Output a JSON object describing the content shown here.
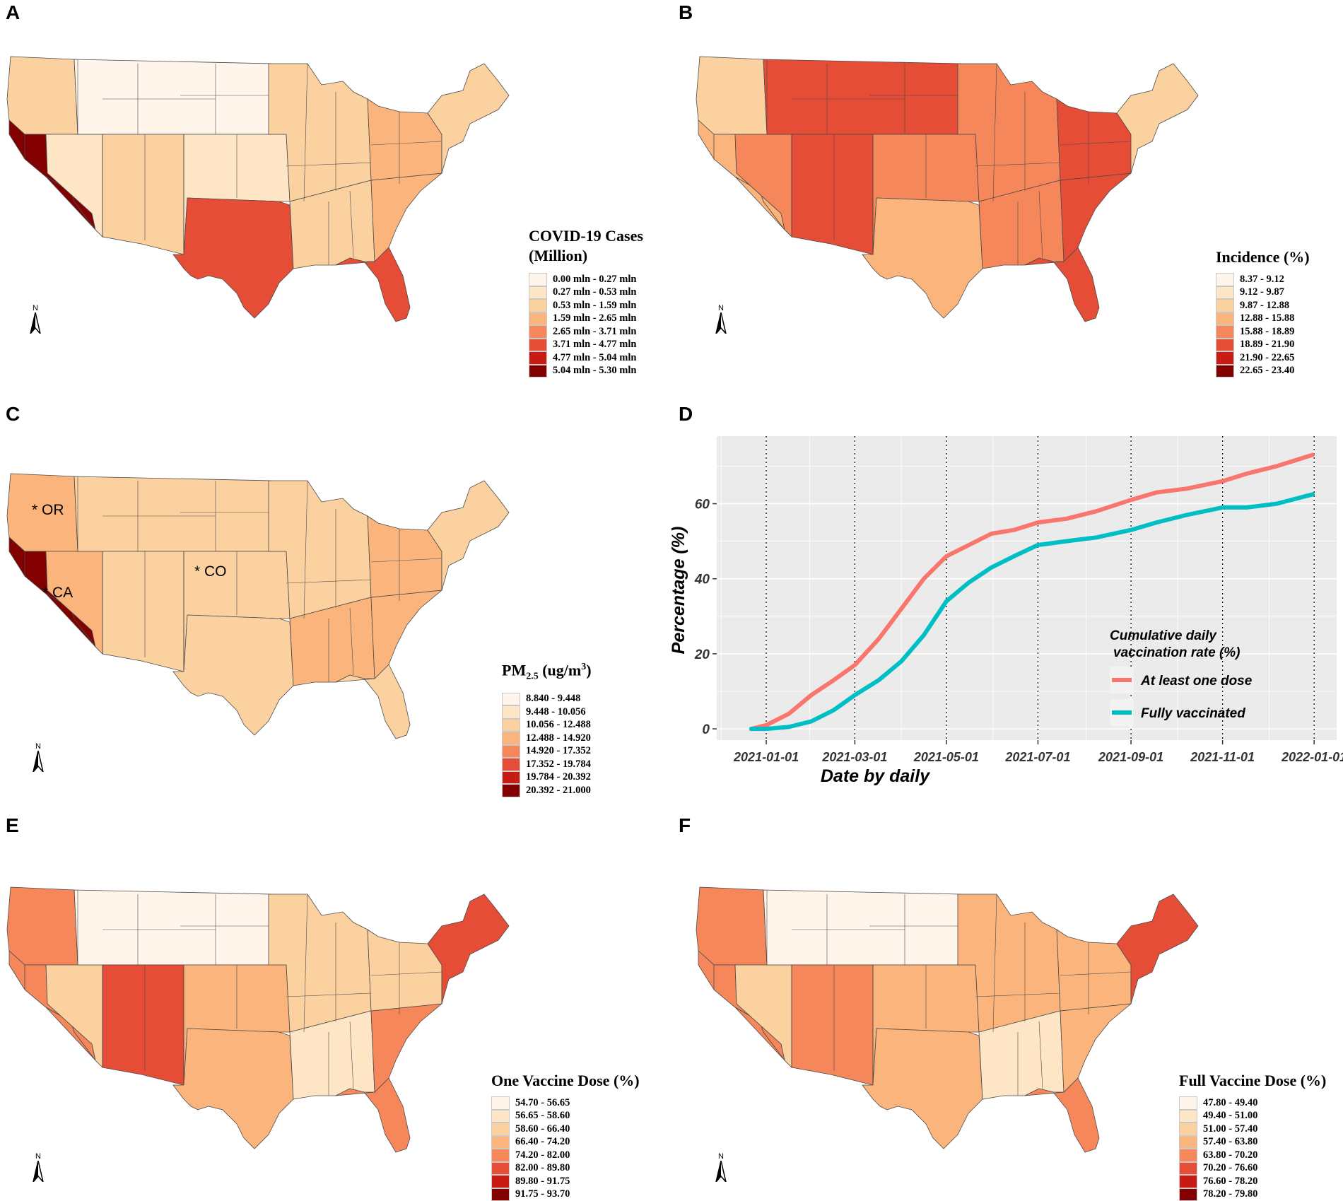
{
  "palette": [
    "#fff5eb",
    "#fde5c6",
    "#fcd1a0",
    "#fbb47b",
    "#f5875b",
    "#e54d36",
    "#c81b14",
    "#820000"
  ],
  "panels": {
    "A": {
      "label": "A",
      "legend_title_line1": "COVID-19 Cases",
      "legend_title_line2": "(Million)",
      "legend_items": [
        "0.00 mln - 0.27 mln",
        "0.27 mln - 0.53 mln",
        "0.53 mln - 1.59 mln",
        "1.59 mln - 2.65 mln",
        "2.65 mln - 3.71 mln",
        "3.71 mln - 4.77 mln",
        "4.77 mln - 5.04 mln",
        "5.04 mln - 5.30 mln"
      ],
      "north_label": "N"
    },
    "B": {
      "label": "B",
      "legend_title": "Incidence (%)",
      "legend_items": [
        "8.37 - 9.12",
        "9.12 - 9.87",
        "9.87 - 12.88",
        "12.88 - 15.88",
        "15.88 - 18.89",
        "18.89 - 21.90",
        "21.90 - 22.65",
        "22.65 - 23.40"
      ],
      "north_label": "N"
    },
    "C": {
      "label": "C",
      "legend_title_main": "PM",
      "legend_title_sub": "2.5",
      "legend_title_unit": " (ug/m",
      "legend_title_sup": "3",
      "legend_title_close": ")",
      "legend_items": [
        "8.840 - 9.448",
        "9.448 - 10.056",
        "10.056 - 12.488",
        "12.488 - 14.920",
        "14.920 - 17.352",
        "17.352 - 19.784",
        "19.784 - 20.392",
        "20.392 - 21.000"
      ],
      "annotations": {
        "or": "* OR",
        "co": "* CO",
        "ca": "* CA"
      },
      "north_label": "N"
    },
    "E": {
      "label": "E",
      "legend_title": "One Vaccine Dose (%)",
      "legend_items": [
        "54.70 - 56.65",
        "56.65 - 58.60",
        "58.60 - 66.40",
        "66.40 - 74.20",
        "74.20 - 82.00",
        "82.00 - 89.80",
        "89.80 - 91.75",
        "91.75 - 93.70"
      ],
      "north_label": "N"
    },
    "F": {
      "label": "F",
      "legend_title": "Full Vaccine Dose (%)",
      "legend_items": [
        "47.80 - 49.40",
        "49.40 - 51.00",
        "51.00 - 57.40",
        "57.40 - 63.80",
        "63.80 - 70.20",
        "70.20 - 76.60",
        "76.60 - 78.20",
        "78.20 - 79.80"
      ],
      "north_label": "N"
    }
  },
  "maps": {
    "A": {
      "west": 2,
      "ca": 7,
      "nw": 1,
      "mtn": 0,
      "sw": 2,
      "plains": 1,
      "tx": 5,
      "mw": 2,
      "south": 2,
      "fl": 5,
      "se": 3,
      "ne": 2,
      "gl": 3
    },
    "B": {
      "west": 2,
      "ca": 3,
      "nw": 4,
      "mtn": 5,
      "sw": 5,
      "plains": 4,
      "tx": 3,
      "mw": 4,
      "south": 4,
      "fl": 5,
      "se": 5,
      "ne": 2,
      "gl": 5
    },
    "C": {
      "west": 3,
      "ca": 7,
      "nw": 3,
      "mtn": 2,
      "sw": 2,
      "plains": 2,
      "tx": 2,
      "mw": 2,
      "south": 3,
      "fl": 2,
      "se": 3,
      "ne": 2,
      "gl": 3
    },
    "E": {
      "west": 4,
      "ca": 4,
      "nw": 2,
      "mtn": 0,
      "sw": 5,
      "plains": 3,
      "tx": 3,
      "mw": 2,
      "south": 1,
      "fl": 4,
      "se": 4,
      "ne": 5,
      "gl": 2
    },
    "F": {
      "west": 4,
      "ca": 4,
      "nw": 2,
      "mtn": 0,
      "sw": 4,
      "plains": 3,
      "tx": 3,
      "mw": 3,
      "south": 1,
      "fl": 4,
      "se": 3,
      "ne": 5,
      "gl": 3
    }
  },
  "chart_data": {
    "type": "line",
    "panel_label": "D",
    "xlabel": "Date by daily",
    "ylabel": "Percentage (%)",
    "x_ticks": [
      "2021-01-01",
      "2021-03-01",
      "2021-05-01",
      "2021-07-01",
      "2021-09-01",
      "2021-11-01",
      "2022-01-01"
    ],
    "y_ticks": [
      "0",
      "20",
      "40",
      "60"
    ],
    "ylim": [
      -3,
      78
    ],
    "xlim_days": [
      -33,
      380
    ],
    "legend_title": "Cumulative daily vaccination rate (%)",
    "legend_title_line1": "Cumulative daily",
    "legend_title_line2": "vaccination rate (%)",
    "grid_color": "#ebebeb",
    "series": [
      {
        "name": "At least one dose",
        "color": "#f8766d",
        "x_days": [
          -10,
          0,
          15,
          30,
          45,
          59,
          75,
          90,
          105,
          120,
          135,
          150,
          165,
          181,
          200,
          220,
          243,
          260,
          280,
          304,
          320,
          340,
          364
        ],
        "values": [
          0,
          1,
          4,
          9,
          13,
          17,
          24,
          32,
          40,
          46,
          49,
          52,
          53,
          55,
          56,
          58,
          61,
          63,
          64,
          66,
          68,
          70,
          73
        ]
      },
      {
        "name": "Fully vaccinated",
        "color": "#00bfc4",
        "x_days": [
          -10,
          0,
          15,
          30,
          45,
          59,
          75,
          90,
          105,
          120,
          135,
          150,
          165,
          181,
          200,
          220,
          243,
          260,
          280,
          304,
          320,
          340,
          364
        ],
        "values": [
          0,
          0,
          0.5,
          2,
          5,
          9,
          13,
          18,
          25,
          34,
          39,
          43,
          46,
          49,
          50,
          51,
          53,
          55,
          57,
          59,
          59,
          60,
          62.5
        ]
      }
    ]
  }
}
